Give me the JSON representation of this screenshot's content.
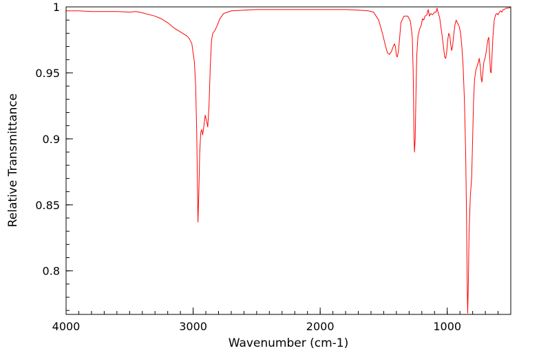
{
  "chart_data": {
    "type": "line",
    "title": "",
    "xlabel": "Wavenumber (cm-1)",
    "ylabel": "Relative Transmittance",
    "xlim": [
      4000,
      500
    ],
    "ylim": [
      0.767,
      1.0
    ],
    "x_reversed": true,
    "grid": false,
    "legend": "none",
    "x_ticks": [
      4000,
      3000,
      2000,
      1000
    ],
    "x_tick_labels": [
      "4000",
      "3000",
      "2000",
      "1000"
    ],
    "y_ticks": [
      0.8,
      0.85,
      0.9,
      0.95,
      1.0
    ],
    "y_tick_labels": [
      "0.8",
      "0.85",
      "0.9",
      "0.95",
      "1"
    ],
    "series": [
      {
        "color": "#ff0000",
        "points": [
          [
            4000,
            0.997
          ],
          [
            3900,
            0.997
          ],
          [
            3800,
            0.9965
          ],
          [
            3700,
            0.9965
          ],
          [
            3600,
            0.9965
          ],
          [
            3500,
            0.996
          ],
          [
            3450,
            0.9965
          ],
          [
            3400,
            0.9955
          ],
          [
            3300,
            0.993
          ],
          [
            3250,
            0.991
          ],
          [
            3200,
            0.988
          ],
          [
            3150,
            0.984
          ],
          [
            3100,
            0.981
          ],
          [
            3050,
            0.978
          ],
          [
            3030,
            0.976
          ],
          [
            3010,
            0.972
          ],
          [
            2990,
            0.958
          ],
          [
            2980,
            0.94
          ],
          [
            2972,
            0.905
          ],
          [
            2966,
            0.865
          ],
          [
            2962,
            0.837
          ],
          [
            2955,
            0.86
          ],
          [
            2948,
            0.89
          ],
          [
            2940,
            0.905
          ],
          [
            2932,
            0.907
          ],
          [
            2925,
            0.903
          ],
          [
            2915,
            0.91
          ],
          [
            2905,
            0.918
          ],
          [
            2895,
            0.914
          ],
          [
            2885,
            0.909
          ],
          [
            2875,
            0.925
          ],
          [
            2865,
            0.955
          ],
          [
            2855,
            0.975
          ],
          [
            2845,
            0.98
          ],
          [
            2830,
            0.982
          ],
          [
            2810,
            0.986
          ],
          [
            2790,
            0.991
          ],
          [
            2760,
            0.995
          ],
          [
            2700,
            0.997
          ],
          [
            2600,
            0.9975
          ],
          [
            2500,
            0.998
          ],
          [
            2400,
            0.998
          ],
          [
            2300,
            0.998
          ],
          [
            2200,
            0.998
          ],
          [
            2100,
            0.998
          ],
          [
            2000,
            0.998
          ],
          [
            1900,
            0.998
          ],
          [
            1800,
            0.998
          ],
          [
            1700,
            0.9975
          ],
          [
            1620,
            0.997
          ],
          [
            1580,
            0.996
          ],
          [
            1540,
            0.99
          ],
          [
            1510,
            0.98
          ],
          [
            1485,
            0.97
          ],
          [
            1470,
            0.965
          ],
          [
            1455,
            0.964
          ],
          [
            1440,
            0.966
          ],
          [
            1425,
            0.97
          ],
          [
            1415,
            0.972
          ],
          [
            1408,
            0.97
          ],
          [
            1400,
            0.963
          ],
          [
            1393,
            0.962
          ],
          [
            1385,
            0.966
          ],
          [
            1375,
            0.976
          ],
          [
            1365,
            0.988
          ],
          [
            1340,
            0.993
          ],
          [
            1310,
            0.993
          ],
          [
            1290,
            0.989
          ],
          [
            1275,
            0.977
          ],
          [
            1268,
            0.95
          ],
          [
            1262,
            0.905
          ],
          [
            1258,
            0.89
          ],
          [
            1252,
            0.9
          ],
          [
            1246,
            0.935
          ],
          [
            1240,
            0.963
          ],
          [
            1230,
            0.978
          ],
          [
            1218,
            0.983
          ],
          [
            1205,
            0.986
          ],
          [
            1195,
            0.991
          ],
          [
            1185,
            0.99
          ],
          [
            1175,
            0.993
          ],
          [
            1160,
            0.994
          ],
          [
            1150,
            0.998
          ],
          [
            1140,
            0.993
          ],
          [
            1130,
            0.995
          ],
          [
            1115,
            0.994
          ],
          [
            1100,
            0.996
          ],
          [
            1088,
            0.996
          ],
          [
            1080,
            0.999
          ],
          [
            1070,
            0.995
          ],
          [
            1060,
            0.992
          ],
          [
            1050,
            0.985
          ],
          [
            1040,
            0.978
          ],
          [
            1030,
            0.97
          ],
          [
            1020,
            0.962
          ],
          [
            1012,
            0.961
          ],
          [
            1004,
            0.966
          ],
          [
            996,
            0.975
          ],
          [
            988,
            0.98
          ],
          [
            980,
            0.978
          ],
          [
            972,
            0.971
          ],
          [
            965,
            0.967
          ],
          [
            958,
            0.97
          ],
          [
            950,
            0.978
          ],
          [
            940,
            0.986
          ],
          [
            930,
            0.99
          ],
          [
            920,
            0.988
          ],
          [
            905,
            0.985
          ],
          [
            895,
            0.98
          ],
          [
            885,
            0.97
          ],
          [
            875,
            0.955
          ],
          [
            865,
            0.93
          ],
          [
            855,
            0.89
          ],
          [
            848,
            0.84
          ],
          [
            843,
            0.79
          ],
          [
            839,
            0.768
          ],
          [
            834,
            0.79
          ],
          [
            828,
            0.83
          ],
          [
            818,
            0.857
          ],
          [
            808,
            0.87
          ],
          [
            800,
            0.9
          ],
          [
            793,
            0.928
          ],
          [
            785,
            0.945
          ],
          [
            775,
            0.952
          ],
          [
            765,
            0.955
          ],
          [
            755,
            0.958
          ],
          [
            748,
            0.961
          ],
          [
            740,
            0.955
          ],
          [
            733,
            0.946
          ],
          [
            727,
            0.943
          ],
          [
            720,
            0.95
          ],
          [
            712,
            0.958
          ],
          [
            703,
            0.961
          ],
          [
            695,
            0.965
          ],
          [
            688,
            0.97
          ],
          [
            680,
            0.975
          ],
          [
            673,
            0.977
          ],
          [
            667,
            0.965
          ],
          [
            660,
            0.951
          ],
          [
            654,
            0.95
          ],
          [
            648,
            0.962
          ],
          [
            640,
            0.978
          ],
          [
            630,
            0.99
          ],
          [
            620,
            0.994
          ],
          [
            610,
            0.995
          ],
          [
            600,
            0.994
          ],
          [
            590,
            0.996
          ],
          [
            580,
            0.997
          ],
          [
            570,
            0.996
          ],
          [
            560,
            0.998
          ],
          [
            550,
            0.998
          ],
          [
            540,
            0.999
          ],
          [
            525,
            0.999
          ],
          [
            505,
            0.9995
          ]
        ]
      }
    ]
  }
}
